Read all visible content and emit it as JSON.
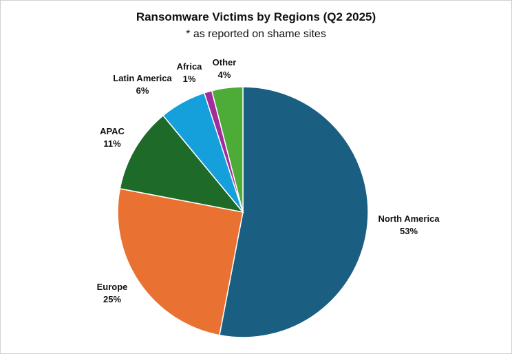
{
  "chart_data": {
    "type": "pie",
    "title": "Ransomware Victims by Regions (Q2 2025)",
    "subtitle": "* as reported on shame sites",
    "slices": [
      {
        "label": "North America",
        "value": 53,
        "value_label": "53%",
        "color": "#1a5e82"
      },
      {
        "label": "Europe",
        "value": 25,
        "value_label": "25%",
        "color": "#e97232"
      },
      {
        "label": "APAC",
        "value": 11,
        "value_label": "11%",
        "color": "#1e6b29"
      },
      {
        "label": "Latin America",
        "value": 6,
        "value_label": "6%",
        "color": "#15a0dc"
      },
      {
        "label": "Africa",
        "value": 1,
        "value_label": "1%",
        "color": "#a12c9c"
      },
      {
        "label": "Other",
        "value": 4,
        "value_label": "4%",
        "color": "#4dab38"
      }
    ],
    "legend": "none",
    "start_angle": "12 o'clock",
    "direction": "clockwise"
  }
}
